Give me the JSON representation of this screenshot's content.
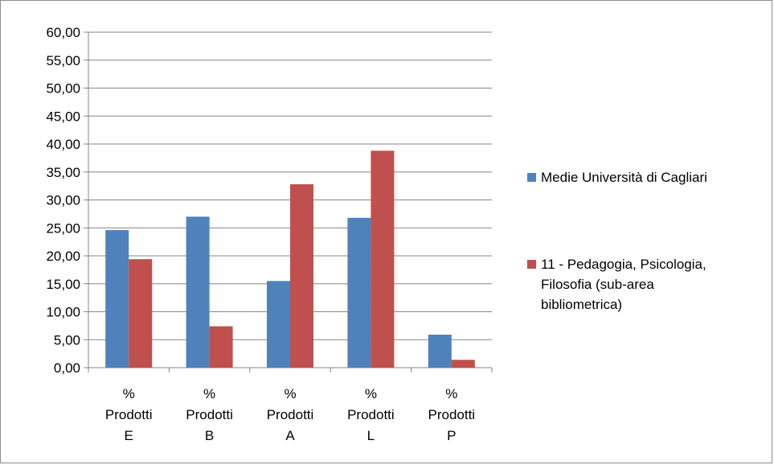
{
  "chart_data": {
    "type": "bar",
    "categories": [
      [
        "%",
        "Prodotti",
        "E"
      ],
      [
        "%",
        "Prodotti",
        "B"
      ],
      [
        "%",
        "Prodotti",
        "A"
      ],
      [
        "%",
        "Prodotti",
        "L"
      ],
      [
        "%",
        "Prodotti",
        "P"
      ]
    ],
    "series": [
      {
        "name": "Medie Università di Cagliari",
        "color": "#4f81bd",
        "values": [
          24.6,
          27.0,
          15.5,
          26.8,
          5.9
        ]
      },
      {
        "name": "11 - Pedagogia, Psicologia, Filosofia (sub-area bibliometrica)",
        "color": "#c0504d",
        "values": [
          19.4,
          7.4,
          32.8,
          38.8,
          1.4
        ]
      }
    ],
    "legend_lines": [
      [
        "Medie Università di Cagliari"
      ],
      [
        "11 - Pedagogia, Psicologia,",
        "Filosofia (sub-area",
        "bibliometrica)"
      ]
    ],
    "ylim": [
      0,
      60
    ],
    "ytick_step": 5,
    "ytick_labels": [
      "0,00",
      "5,00",
      "10,00",
      "15,00",
      "20,00",
      "25,00",
      "30,00",
      "35,00",
      "40,00",
      "45,00",
      "50,00",
      "55,00",
      "60,00"
    ],
    "title": "",
    "xlabel": "",
    "ylabel": "",
    "grid": true,
    "legend_position": "right"
  }
}
